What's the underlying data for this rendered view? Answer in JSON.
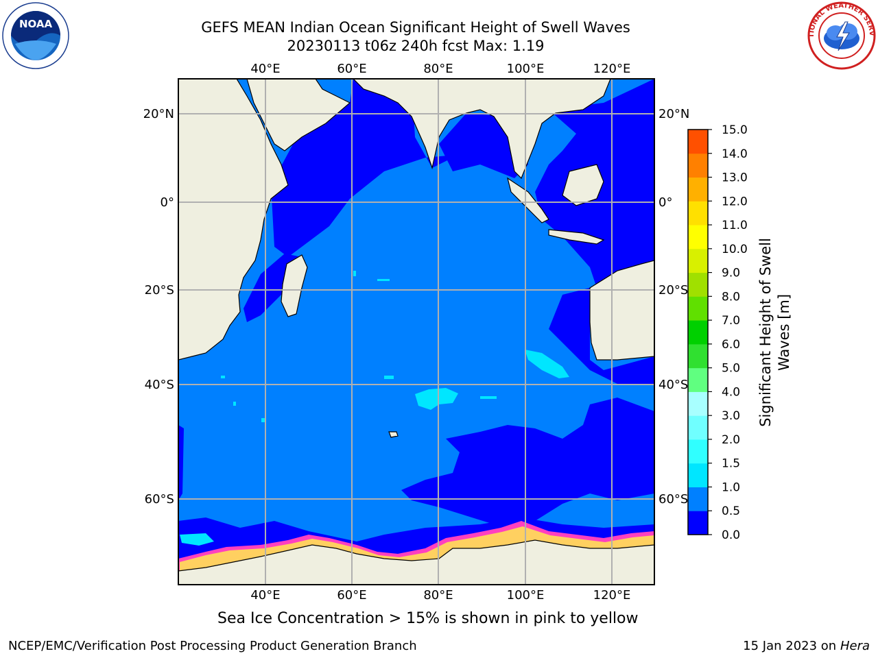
{
  "title": {
    "line1": "GEFS MEAN Indian Ocean Significant Height of Swell Waves",
    "line2": "20230113 t06z 240h fcst   Max: 1.19"
  },
  "map": {
    "lon_ticks": [
      "40°E",
      "60°E",
      "80°E",
      "100°E",
      "120°E"
    ],
    "lat_ticks": [
      "20°N",
      "0°",
      "20°S",
      "40°S",
      "60°S"
    ],
    "colors": {
      "land": "#efefe0",
      "ocean_low": "#0000ff",
      "ocean_mid": "#0080ff",
      "ocean_high": "#00e6e6",
      "ice": "#ff40c0",
      "ice_inner": "#ffd060",
      "grid": "#b0b0b0"
    }
  },
  "colorbar": {
    "label_line1": "Significant Height of Swell",
    "label_line2": "Waves [m]",
    "ticks": [
      "0.0",
      "0.5",
      "1.0",
      "1.5",
      "2.0",
      "3.0",
      "4.0",
      "5.0",
      "6.0",
      "7.0",
      "8.0",
      "9.0",
      "10.0",
      "11.0",
      "12.0",
      "13.0",
      "14.0",
      "15.0"
    ],
    "colors": [
      "#0000ff",
      "#0080ff",
      "#00e6ff",
      "#30ffff",
      "#70ffff",
      "#a8ffff",
      "#60ff80",
      "#30e030",
      "#00d000",
      "#60e000",
      "#a0e000",
      "#d8f000",
      "#ffff00",
      "#ffe000",
      "#ffb000",
      "#ff8000",
      "#ff5000",
      "#ff2000",
      "#ff0000"
    ]
  },
  "captions": {
    "ice": "Sea Ice Concentration > 15% is shown in pink to yellow",
    "footer_left": "NCEP/EMC/Verification Post Processing Product Generation Branch",
    "footer_right_date": "15 Jan 2023 on ",
    "footer_right_host": "Hera"
  },
  "logos": {
    "noaa": "NOAA",
    "nws": "NATIONAL WEATHER SERVICE"
  }
}
